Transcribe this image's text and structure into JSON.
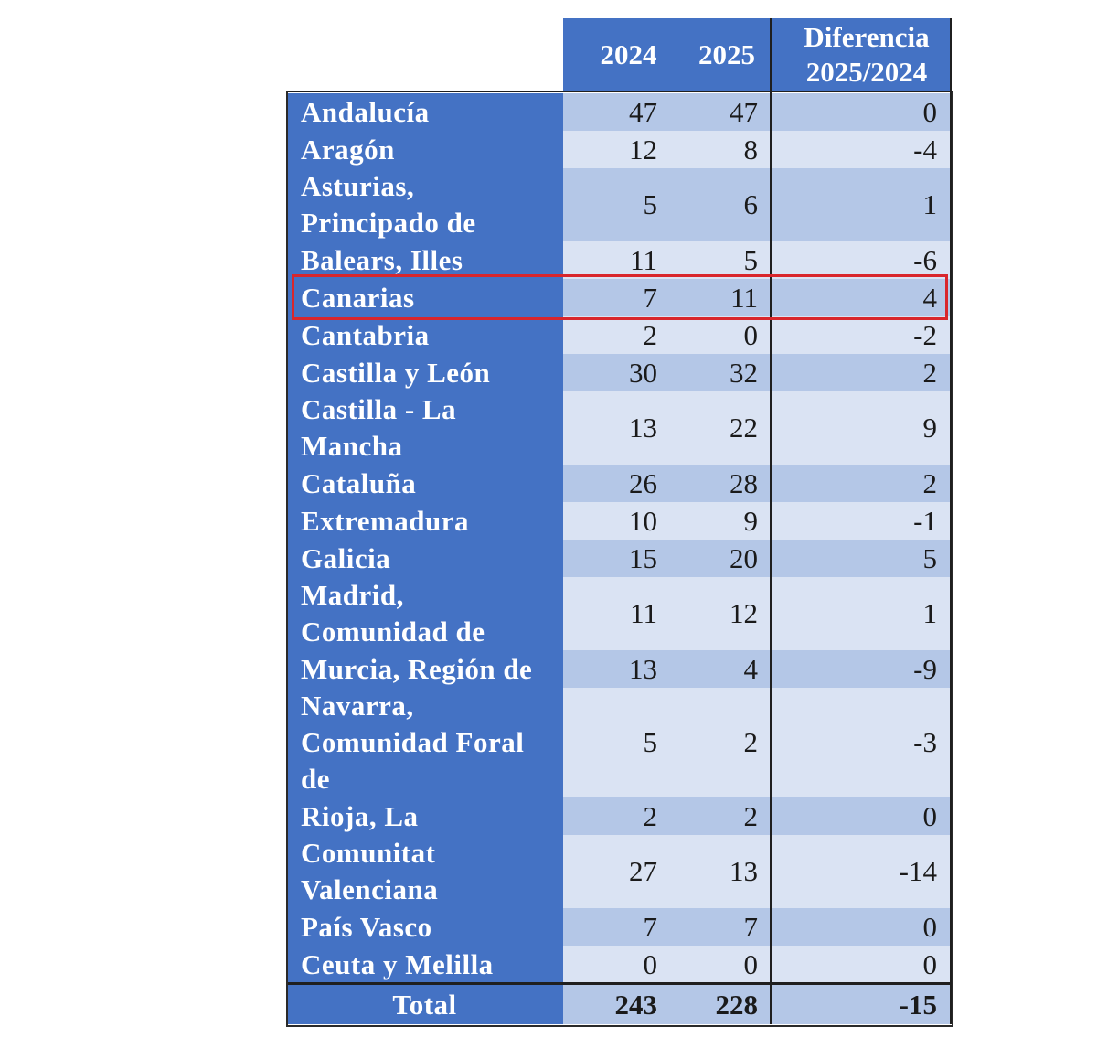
{
  "table": {
    "headers": {
      "year_2024": "2024",
      "year_2025": "2025",
      "diff_line1": "Diferencia",
      "diff_line2": "2025/2024"
    },
    "rows": [
      {
        "region_lines": [
          "Andalucía"
        ],
        "v2024": "47",
        "v2025": "47",
        "diff": "0"
      },
      {
        "region_lines": [
          "Aragón"
        ],
        "v2024": "12",
        "v2025": "8",
        "diff": "-4"
      },
      {
        "region_lines": [
          "Asturias,",
          "Principado de"
        ],
        "v2024": "5",
        "v2025": "6",
        "diff": "1"
      },
      {
        "region_lines": [
          "Balears, Illes"
        ],
        "v2024": "11",
        "v2025": "5",
        "diff": "-6"
      },
      {
        "region_lines": [
          "Canarias"
        ],
        "v2024": "7",
        "v2025": "11",
        "diff": "4"
      },
      {
        "region_lines": [
          "Cantabria"
        ],
        "v2024": "2",
        "v2025": "0",
        "diff": "-2"
      },
      {
        "region_lines": [
          "Castilla y León"
        ],
        "v2024": "30",
        "v2025": "32",
        "diff": "2"
      },
      {
        "region_lines": [
          "Castilla - La",
          "Mancha"
        ],
        "v2024": "13",
        "v2025": "22",
        "diff": "9"
      },
      {
        "region_lines": [
          "Cataluña"
        ],
        "v2024": "26",
        "v2025": "28",
        "diff": "2"
      },
      {
        "region_lines": [
          "Extremadura"
        ],
        "v2024": "10",
        "v2025": "9",
        "diff": "-1"
      },
      {
        "region_lines": [
          "Galicia"
        ],
        "v2024": "15",
        "v2025": "20",
        "diff": "5"
      },
      {
        "region_lines": [
          "Madrid,",
          "Comunidad de"
        ],
        "v2024": "11",
        "v2025": "12",
        "diff": "1"
      },
      {
        "region_lines": [
          "Murcia, Región de"
        ],
        "v2024": "13",
        "v2025": "4",
        "diff": "-9"
      },
      {
        "region_lines": [
          "Navarra,",
          "Comunidad Foral",
          "de"
        ],
        "v2024": "5",
        "v2025": "2",
        "diff": "-3"
      },
      {
        "region_lines": [
          "Rioja, La"
        ],
        "v2024": "2",
        "v2025": "2",
        "diff": "0"
      },
      {
        "region_lines": [
          "Comunitat",
          "Valenciana"
        ],
        "v2024": "27",
        "v2025": "13",
        "diff": "-14"
      },
      {
        "region_lines": [
          "País Vasco"
        ],
        "v2024": "7",
        "v2025": "7",
        "diff": "0"
      },
      {
        "region_lines": [
          "Ceuta y Melilla"
        ],
        "v2024": "0",
        "v2025": "0",
        "diff": "0"
      }
    ],
    "total": {
      "label": "Total",
      "v2024": "243",
      "v2025": "228",
      "diff": "-15"
    },
    "highlighted_region": "Canarias"
  },
  "colors": {
    "header_blue": "#4472c4",
    "row_light": "#dae3f3",
    "row_mid": "#b4c7e7",
    "highlight_red": "#d9262c"
  }
}
